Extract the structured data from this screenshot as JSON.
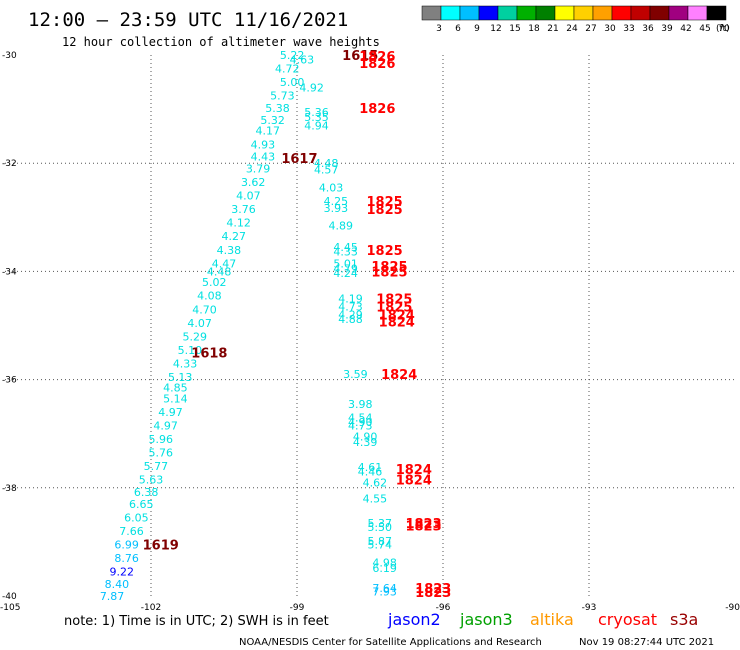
{
  "header": {
    "title": "12:00 — 23:59 UTC 11/16/2021",
    "subtitle": "12 hour collection of altimeter wave heights"
  },
  "scale": {
    "unit": "(ft)",
    "labels": [
      "3",
      "6",
      "9",
      "12",
      "15",
      "18",
      "21",
      "24",
      "27",
      "30",
      "33",
      "36",
      "39",
      "42",
      "45",
      "70"
    ],
    "colors": [
      "#808080",
      "#00ffff",
      "#00bfff",
      "#0000ff",
      "#00d0a0",
      "#00b000",
      "#008000",
      "#ffff00",
      "#ffd000",
      "#ffa000",
      "#ff0000",
      "#c00000",
      "#800000",
      "#a00080",
      "#ff80ff",
      "#000000"
    ]
  },
  "note": "note: 1) Time is in UTC; 2) SWH is in feet",
  "satellites": [
    {
      "name": "jason2",
      "color": "#0000ff"
    },
    {
      "name": "jason3",
      "color": "#00a000"
    },
    {
      "name": "altika",
      "color": "#ff9900"
    },
    {
      "name": "cryosat",
      "color": "#ff0000"
    },
    {
      "name": "s3a",
      "color": "#990000"
    }
  ],
  "footer": {
    "credit": "NOAA/NESDIS Center for Satellite Applications and Research",
    "timestamp": "Nov 19 08:27:44 UTC 2021"
  },
  "chart_data": {
    "type": "scatter",
    "title": "12:00 — 23:59 UTC 11/16/2021",
    "subtitle": "12 hour collection of altimeter wave heights",
    "xlim": [
      -105,
      -90
    ],
    "ylim": [
      -40,
      -30
    ],
    "x_ticks": [
      -105,
      -102,
      -99,
      -96,
      -93,
      -90
    ],
    "y_ticks": [
      -30,
      -32,
      -34,
      -36,
      -38,
      -40
    ],
    "grid": true,
    "points": [
      {
        "lon": -99.1,
        "lat": -30.0,
        "text": "5.22",
        "color": "#00e0e0"
      },
      {
        "lon": -98.9,
        "lat": -30.08,
        "text": "4.63",
        "color": "#00e0e0"
      },
      {
        "lon": -99.2,
        "lat": -30.25,
        "text": "4.72",
        "color": "#00e0e0"
      },
      {
        "lon": -99.1,
        "lat": -30.5,
        "text": "5.00",
        "color": "#00e0e0"
      },
      {
        "lon": -98.7,
        "lat": -30.6,
        "text": "4.92",
        "color": "#00e0e0"
      },
      {
        "lon": -99.3,
        "lat": -30.75,
        "text": "5.73",
        "color": "#00e0e0"
      },
      {
        "lon": -99.4,
        "lat": -30.98,
        "text": "5.38",
        "color": "#00e0e0"
      },
      {
        "lon": -98.6,
        "lat": -31.05,
        "text": "5.36",
        "color": "#00e0e0"
      },
      {
        "lon": -99.5,
        "lat": -31.2,
        "text": "5.32",
        "color": "#00e0e0"
      },
      {
        "lon": -98.6,
        "lat": -31.15,
        "text": "5.35",
        "color": "#00e0e0"
      },
      {
        "lon": -98.6,
        "lat": -31.3,
        "text": "4.94",
        "color": "#00e0e0"
      },
      {
        "lon": -99.6,
        "lat": -31.4,
        "text": "4.17",
        "color": "#00e0e0"
      },
      {
        "lon": -99.7,
        "lat": -31.65,
        "text": "4.93",
        "color": "#00e0e0"
      },
      {
        "lon": -99.7,
        "lat": -31.88,
        "text": "4.43",
        "color": "#00e0e0"
      },
      {
        "lon": -98.4,
        "lat": -32.0,
        "text": "4.48",
        "color": "#00e0e0"
      },
      {
        "lon": -99.8,
        "lat": -32.1,
        "text": "3.79",
        "color": "#00e0e0"
      },
      {
        "lon": -98.4,
        "lat": -32.12,
        "text": "4.57",
        "color": "#00e0e0"
      },
      {
        "lon": -99.9,
        "lat": -32.35,
        "text": "3.62",
        "color": "#00e0e0"
      },
      {
        "lon": -98.3,
        "lat": -32.45,
        "text": "4.03",
        "color": "#00e0e0"
      },
      {
        "lon": -100.0,
        "lat": -32.6,
        "text": "4.07",
        "color": "#00e0e0"
      },
      {
        "lon": -98.2,
        "lat": -32.7,
        "text": "4.25",
        "color": "#00e0e0"
      },
      {
        "lon": -100.1,
        "lat": -32.85,
        "text": "3.76",
        "color": "#00e0e0"
      },
      {
        "lon": -98.2,
        "lat": -32.83,
        "text": "3.93",
        "color": "#00e0e0"
      },
      {
        "lon": -100.2,
        "lat": -33.1,
        "text": "4.12",
        "color": "#00e0e0"
      },
      {
        "lon": -98.1,
        "lat": -33.15,
        "text": "4.89",
        "color": "#00e0e0"
      },
      {
        "lon": -100.3,
        "lat": -33.35,
        "text": "4.27",
        "color": "#00e0e0"
      },
      {
        "lon": -100.4,
        "lat": -33.6,
        "text": "4.38",
        "color": "#00e0e0"
      },
      {
        "lon": -98.0,
        "lat": -33.55,
        "text": "4.45",
        "color": "#00e0e0"
      },
      {
        "lon": -98.0,
        "lat": -33.63,
        "text": "4.33",
        "color": "#00e0e0"
      },
      {
        "lon": -100.5,
        "lat": -33.85,
        "text": "4.47",
        "color": "#00e0e0"
      },
      {
        "lon": -98.0,
        "lat": -33.85,
        "text": "5.01",
        "color": "#00e0e0"
      },
      {
        "lon": -98.0,
        "lat": -33.95,
        "text": "4.79",
        "color": "#00e0e0"
      },
      {
        "lon": -98.0,
        "lat": -34.03,
        "text": "4.24",
        "color": "#00e0e0"
      },
      {
        "lon": -100.6,
        "lat": -34.0,
        "text": "4.48",
        "color": "#00e0e0"
      },
      {
        "lon": -100.7,
        "lat": -34.2,
        "text": "5.02",
        "color": "#00e0e0"
      },
      {
        "lon": -100.8,
        "lat": -34.45,
        "text": "4.08",
        "color": "#00e0e0"
      },
      {
        "lon": -97.9,
        "lat": -34.5,
        "text": "4.19",
        "color": "#00e0e0"
      },
      {
        "lon": -100.9,
        "lat": -34.7,
        "text": "4.70",
        "color": "#00e0e0"
      },
      {
        "lon": -97.9,
        "lat": -34.65,
        "text": "4.73",
        "color": "#00e0e0"
      },
      {
        "lon": -97.9,
        "lat": -34.8,
        "text": "4.29",
        "color": "#00e0e0"
      },
      {
        "lon": -97.9,
        "lat": -34.88,
        "text": "4.88",
        "color": "#00e0e0"
      },
      {
        "lon": -101.0,
        "lat": -34.95,
        "text": "4.07",
        "color": "#00e0e0"
      },
      {
        "lon": -101.1,
        "lat": -35.2,
        "text": "5.29",
        "color": "#00e0e0"
      },
      {
        "lon": -101.2,
        "lat": -35.45,
        "text": "5.10",
        "color": "#00e0e0"
      },
      {
        "lon": -101.3,
        "lat": -35.7,
        "text": "4.33",
        "color": "#00e0e0"
      },
      {
        "lon": -97.8,
        "lat": -35.9,
        "text": "3.59",
        "color": "#00e0e0"
      },
      {
        "lon": -101.4,
        "lat": -35.95,
        "text": "5.13",
        "color": "#00e0e0"
      },
      {
        "lon": -101.5,
        "lat": -36.15,
        "text": "4.85",
        "color": "#00e0e0"
      },
      {
        "lon": -101.5,
        "lat": -36.35,
        "text": "5.14",
        "color": "#00e0e0"
      },
      {
        "lon": -97.7,
        "lat": -36.45,
        "text": "3.98",
        "color": "#00e0e0"
      },
      {
        "lon": -101.6,
        "lat": -36.6,
        "text": "4.97",
        "color": "#00e0e0"
      },
      {
        "lon": -97.7,
        "lat": -36.7,
        "text": "4.54",
        "color": "#00e0e0"
      },
      {
        "lon": -97.7,
        "lat": -36.78,
        "text": "4.90",
        "color": "#00e0e0"
      },
      {
        "lon": -97.7,
        "lat": -36.85,
        "text": "4.73",
        "color": "#00e0e0"
      },
      {
        "lon": -101.7,
        "lat": -36.85,
        "text": "4.97",
        "color": "#00e0e0"
      },
      {
        "lon": -101.8,
        "lat": -37.1,
        "text": "5.96",
        "color": "#00e0e0"
      },
      {
        "lon": -97.6,
        "lat": -37.05,
        "text": "4.90",
        "color": "#00e0e0"
      },
      {
        "lon": -97.6,
        "lat": -37.15,
        "text": "4.39",
        "color": "#00e0e0"
      },
      {
        "lon": -101.8,
        "lat": -37.35,
        "text": "5.76",
        "color": "#00e0e0"
      },
      {
        "lon": -101.9,
        "lat": -37.6,
        "text": "5.77",
        "color": "#00e0e0"
      },
      {
        "lon": -97.5,
        "lat": -37.62,
        "text": "4.61",
        "color": "#00e0e0"
      },
      {
        "lon": -97.5,
        "lat": -37.7,
        "text": "4.46",
        "color": "#00e0e0"
      },
      {
        "lon": -102.0,
        "lat": -37.85,
        "text": "5.63",
        "color": "#00e0e0"
      },
      {
        "lon": -97.4,
        "lat": -37.9,
        "text": "4.62",
        "color": "#00e0e0"
      },
      {
        "lon": -102.1,
        "lat": -38.08,
        "text": "6.38",
        "color": "#00e0e0"
      },
      {
        "lon": -97.4,
        "lat": -38.2,
        "text": "4.55",
        "color": "#00e0e0"
      },
      {
        "lon": -102.2,
        "lat": -38.3,
        "text": "6.65",
        "color": "#00e0e0"
      },
      {
        "lon": -102.3,
        "lat": -38.55,
        "text": "6.05",
        "color": "#00e0e0"
      },
      {
        "lon": -97.3,
        "lat": -38.65,
        "text": "5.37",
        "color": "#00e0e0"
      },
      {
        "lon": -97.3,
        "lat": -38.72,
        "text": "5.50",
        "color": "#00e0e0"
      },
      {
        "lon": -102.4,
        "lat": -38.8,
        "text": "7.66",
        "color": "#00e0e0"
      },
      {
        "lon": -97.3,
        "lat": -38.98,
        "text": "5.87",
        "color": "#00e0e0"
      },
      {
        "lon": -97.3,
        "lat": -39.05,
        "text": "5.74",
        "color": "#00e0e0"
      },
      {
        "lon": -102.5,
        "lat": -39.05,
        "text": "6.99",
        "color": "#00bfff"
      },
      {
        "lon": -102.5,
        "lat": -39.3,
        "text": "8.76",
        "color": "#00bfff"
      },
      {
        "lon": -97.2,
        "lat": -39.38,
        "text": "4.98",
        "color": "#00e0e0"
      },
      {
        "lon": -97.2,
        "lat": -39.48,
        "text": "6.19",
        "color": "#00e0e0"
      },
      {
        "lon": -102.6,
        "lat": -39.55,
        "text": "9.22",
        "color": "#0000ff"
      },
      {
        "lon": -102.7,
        "lat": -39.78,
        "text": "8.40",
        "color": "#00bfff"
      },
      {
        "lon": -97.2,
        "lat": -39.85,
        "text": "7.64",
        "color": "#00bfff"
      },
      {
        "lon": -97.2,
        "lat": -39.92,
        "text": "7.93",
        "color": "#00bfff"
      },
      {
        "lon": -102.8,
        "lat": -40.0,
        "text": "7.87",
        "color": "#00bfff"
      }
    ],
    "time_labels": [
      {
        "lon": -97.7,
        "lat": -30.0,
        "text": "1615",
        "color": "#800000"
      },
      {
        "lon": -97.35,
        "lat": -30.02,
        "text": "1826",
        "color": "#ff0000"
      },
      {
        "lon": -97.35,
        "lat": -30.15,
        "text": "1826",
        "color": "#ff0000"
      },
      {
        "lon": -97.35,
        "lat": -30.98,
        "text": "1826",
        "color": "#ff0000"
      },
      {
        "lon": -98.95,
        "lat": -31.9,
        "text": "1617",
        "color": "#800000"
      },
      {
        "lon": -97.2,
        "lat": -32.7,
        "text": "1825",
        "color": "#ff0000"
      },
      {
        "lon": -97.2,
        "lat": -32.85,
        "text": "1825",
        "color": "#ff0000"
      },
      {
        "lon": -97.2,
        "lat": -33.6,
        "text": "1825",
        "color": "#ff0000"
      },
      {
        "lon": -97.1,
        "lat": -33.9,
        "text": "1825",
        "color": "#ff0000"
      },
      {
        "lon": -97.1,
        "lat": -34.0,
        "text": "1825",
        "color": "#ff0000"
      },
      {
        "lon": -97.0,
        "lat": -34.5,
        "text": "1825",
        "color": "#ff0000"
      },
      {
        "lon": -97.0,
        "lat": -34.65,
        "text": "1825",
        "color": "#ff0000"
      },
      {
        "lon": -96.95,
        "lat": -34.8,
        "text": "1824",
        "color": "#ff0000"
      },
      {
        "lon": -96.95,
        "lat": -34.93,
        "text": "1824",
        "color": "#ff0000"
      },
      {
        "lon": -100.8,
        "lat": -35.5,
        "text": "1618",
        "color": "#800000"
      },
      {
        "lon": -96.9,
        "lat": -35.9,
        "text": "1824",
        "color": "#ff0000"
      },
      {
        "lon": -96.6,
        "lat": -37.65,
        "text": "1824",
        "color": "#ff0000"
      },
      {
        "lon": -96.6,
        "lat": -37.85,
        "text": "1824",
        "color": "#ff0000"
      },
      {
        "lon": -96.4,
        "lat": -38.65,
        "text": "1823",
        "color": "#ff0000"
      },
      {
        "lon": -96.4,
        "lat": -38.7,
        "text": "1823",
        "color": "#ff0000"
      },
      {
        "lon": -101.8,
        "lat": -39.05,
        "text": "1619",
        "color": "#800000"
      },
      {
        "lon": -96.2,
        "lat": -39.85,
        "text": "1823",
        "color": "#ff0000"
      },
      {
        "lon": -96.2,
        "lat": -39.93,
        "text": "1823",
        "color": "#ff0000"
      }
    ]
  }
}
